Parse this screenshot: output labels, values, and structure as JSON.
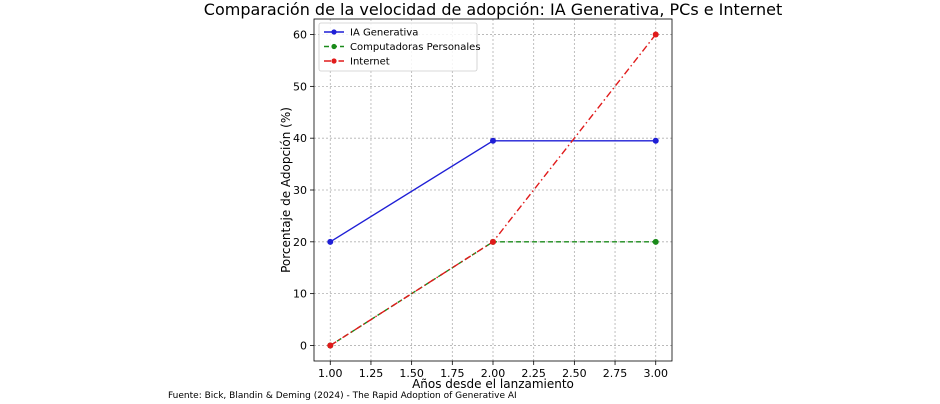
{
  "chart_data": {
    "type": "line",
    "title": "Comparación de la velocidad de adopción: IA Generativa, PCs e Internet",
    "xlabel": "Años desde el lanzamiento",
    "ylabel": "Porcentaje de Adopción (%)",
    "x": [
      1,
      2,
      3
    ],
    "xlim": [
      0.9,
      3.1
    ],
    "ylim": [
      -3,
      63
    ],
    "x_ticks": [
      1.0,
      1.25,
      1.5,
      1.75,
      2.0,
      2.25,
      2.5,
      2.75,
      3.0
    ],
    "x_tick_labels": [
      "1.00",
      "1.25",
      "1.50",
      "1.75",
      "2.00",
      "2.25",
      "2.50",
      "2.75",
      "3.00"
    ],
    "y_ticks": [
      0,
      10,
      20,
      30,
      40,
      50,
      60
    ],
    "y_tick_labels": [
      "0",
      "10",
      "20",
      "30",
      "40",
      "50",
      "60"
    ],
    "grid": true,
    "legend_position": "top-left",
    "series": [
      {
        "name": "IA Generativa",
        "values": [
          20,
          39.5,
          39.5
        ],
        "color": "#1f1fd6",
        "line_style": "solid"
      },
      {
        "name": "Computadoras Personales",
        "values": [
          0,
          20,
          20
        ],
        "color": "#1a8a1a",
        "line_style": "dashed"
      },
      {
        "name": "Internet",
        "values": [
          0,
          20,
          60
        ],
        "color": "#e01b1b",
        "line_style": "dashdot"
      }
    ],
    "source_note": "Fuente: Bick, Blandin & Deming (2024) - The Rapid Adoption of Generative AI"
  }
}
